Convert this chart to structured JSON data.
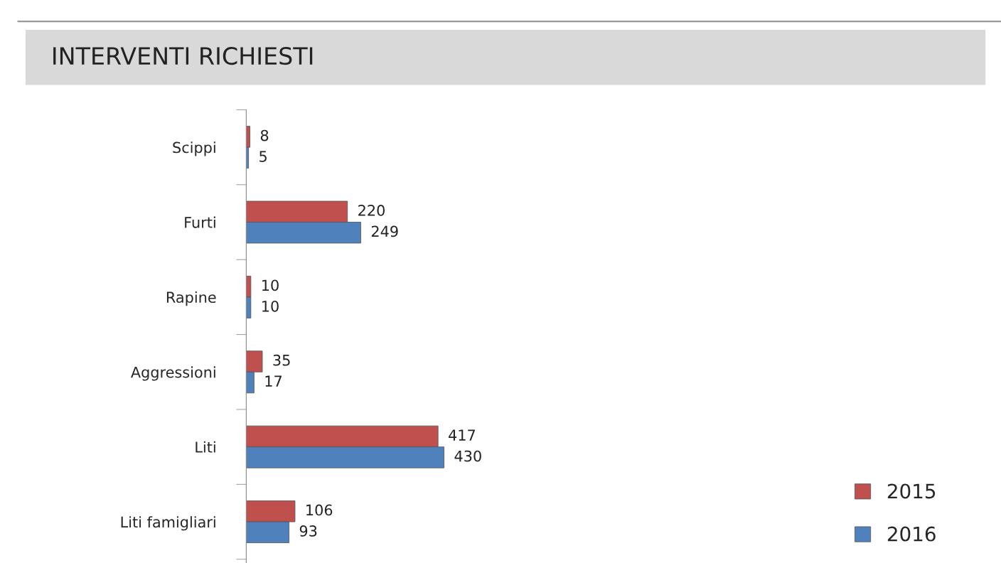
{
  "chart_data": {
    "type": "bar",
    "orientation": "horizontal",
    "title": "INTERVENTI RICHIESTI",
    "categories": [
      "Scippi",
      "Furti",
      "Rapine",
      "Aggressioni",
      "Liti",
      "Liti famigliari"
    ],
    "series": [
      {
        "name": "2015",
        "color": "#c0504d",
        "values": [
          8,
          220,
          10,
          35,
          417,
          106
        ]
      },
      {
        "name": "2016",
        "color": "#4f81bd",
        "values": [
          5,
          249,
          10,
          17,
          430,
          93
        ]
      }
    ],
    "data_labels": true,
    "legend": "bottom right",
    "grid": false
  }
}
